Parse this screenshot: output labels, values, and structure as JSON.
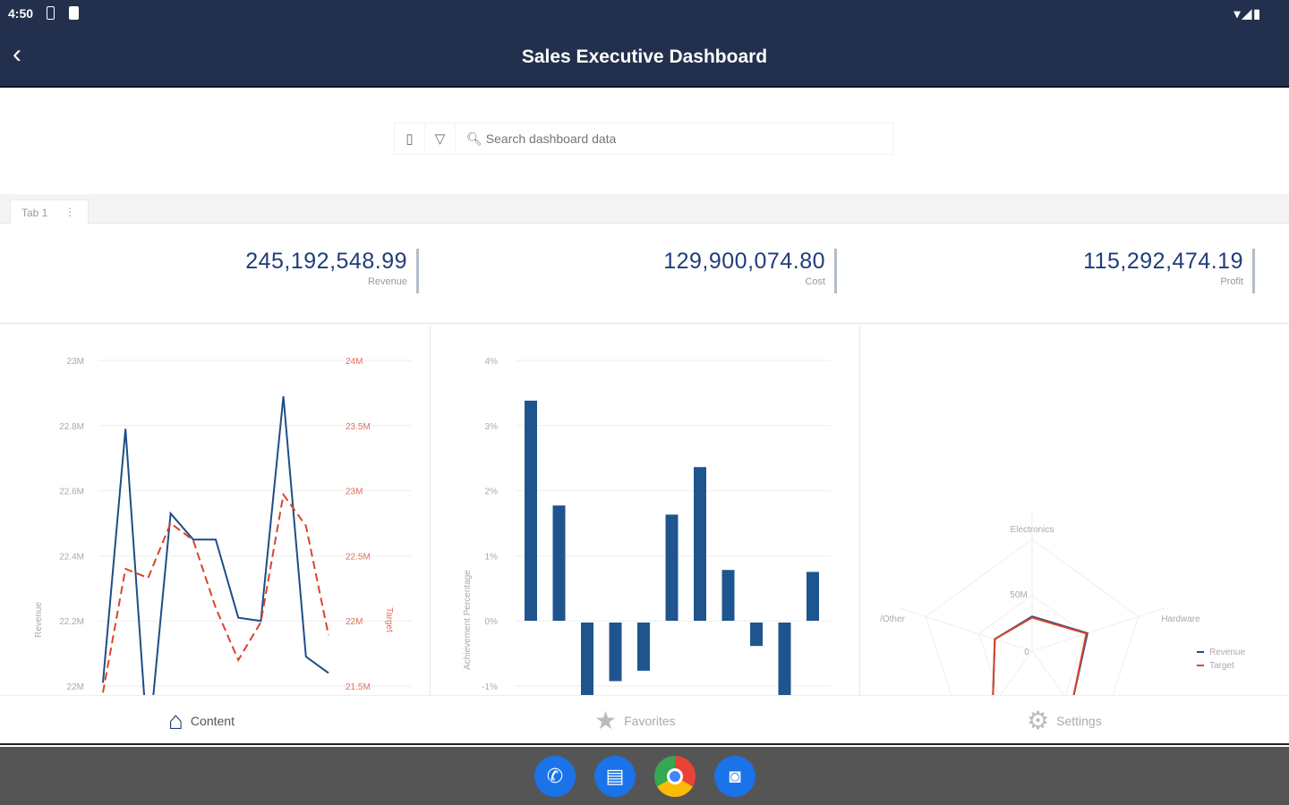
{
  "status": {
    "time": "4:50",
    "right_icons": "wifi signal battery"
  },
  "appbar": {
    "title": "Sales Executive Dashboard",
    "back_icon": "‹"
  },
  "toolbar": {
    "search_placeholder": "Search dashboard data"
  },
  "tabs": [
    {
      "label": "Tab 1"
    }
  ],
  "kpis": [
    {
      "value": "245,192,548.99",
      "label": "Revenue"
    },
    {
      "value": "129,900,074.80",
      "label": "Cost"
    },
    {
      "value": "115,292,474.19",
      "label": "Profit"
    }
  ],
  "colors": {
    "header": "#23304d",
    "revenue": "#1f4e86",
    "target": "#d9452b",
    "bar": "#1f558f"
  },
  "chart_data": [
    {
      "type": "line",
      "ylabel": "Revenue",
      "y2label": "Target",
      "yticks": [
        "23M",
        "22.8M",
        "22.6M",
        "22.4M",
        "22.2M",
        "22M"
      ],
      "y2ticks": [
        "24M",
        "23.5M",
        "23M",
        "22.5M",
        "22M",
        "21.5M"
      ],
      "ylim": [
        22,
        23
      ],
      "y2lim": [
        21.5,
        24
      ],
      "series": [
        {
          "name": "Revenue",
          "axis": "left",
          "values": [
            22.01,
            22.79,
            21.8,
            22.53,
            22.45,
            22.45,
            22.21,
            22.2,
            22.89,
            22.09,
            22.04
          ]
        },
        {
          "name": "Target",
          "axis": "right",
          "values": [
            21.45,
            22.4,
            22.33,
            22.75,
            22.62,
            22.1,
            21.7,
            21.99,
            22.97,
            22.73,
            21.89
          ]
        }
      ]
    },
    {
      "type": "bar",
      "ylabel": "Achievement Percentage",
      "yticks": [
        "4%",
        "3%",
        "2%",
        "1%",
        "0%",
        "-1%"
      ],
      "ylim": [
        -1,
        4
      ],
      "values": [
        3.38,
        1.77,
        -1.2,
        -0.9,
        -0.74,
        1.63,
        2.36,
        0.78,
        -0.36,
        -1.2,
        0.75
      ]
    },
    {
      "type": "radar",
      "categories": [
        "Electronics",
        "Hardware",
        "",
        "",
        "/Other"
      ],
      "rticks": [
        "0",
        "50M"
      ],
      "series": [
        {
          "name": "Revenue",
          "values": [
            31,
            52,
            60,
            60,
            35
          ]
        },
        {
          "name": "Target",
          "values": [
            30,
            51,
            60,
            60,
            35
          ]
        }
      ],
      "legend": "right"
    }
  ],
  "nav": [
    {
      "label": "Content",
      "icon": "home"
    },
    {
      "label": "Favorites",
      "icon": "star"
    },
    {
      "label": "Settings",
      "icon": "gear"
    }
  ],
  "dock": [
    {
      "name": "Phone"
    },
    {
      "name": "Messages"
    },
    {
      "name": "Chrome"
    },
    {
      "name": "Camera"
    }
  ]
}
